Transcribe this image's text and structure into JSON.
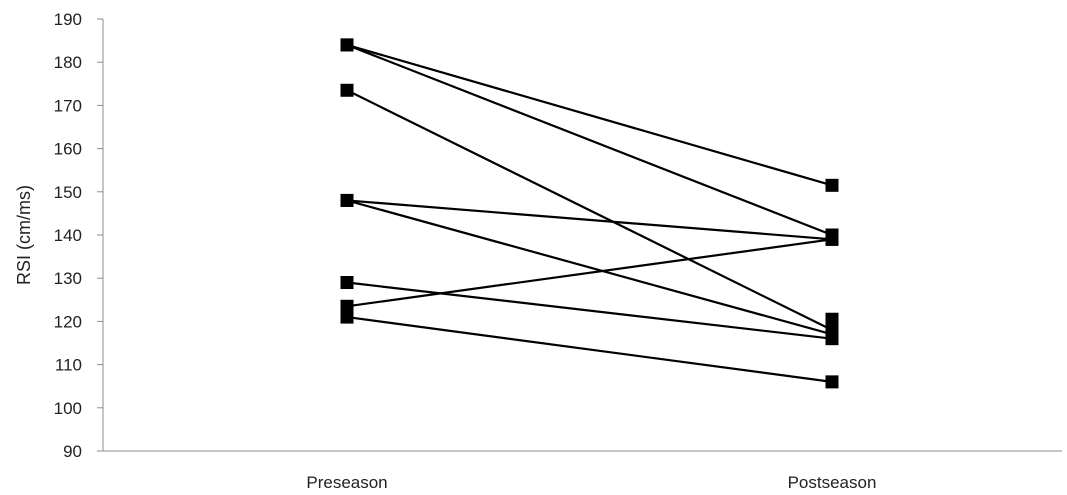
{
  "chart_data": {
    "type": "line",
    "title": "",
    "xlabel": "",
    "ylabel": "RSI (cm/ms)",
    "categories": [
      "Preseason",
      "Postseason"
    ],
    "ylim": [
      90,
      190
    ],
    "yticks": [
      90,
      100,
      110,
      120,
      130,
      140,
      150,
      160,
      170,
      180,
      190
    ],
    "grid": false,
    "legend": "none",
    "marker": "square",
    "line_color": "#000000",
    "series": [
      {
        "values": [
          184,
          151.5
        ]
      },
      {
        "values": [
          184,
          140
        ]
      },
      {
        "values": [
          173.5,
          118
        ]
      },
      {
        "values": [
          148,
          139
        ]
      },
      {
        "values": [
          148,
          117
        ]
      },
      {
        "values": [
          129,
          116
        ]
      },
      {
        "values": [
          123.5,
          139
        ]
      },
      {
        "values": [
          121,
          106
        ]
      }
    ],
    "extra_points": [
      {
        "category": "Postseason",
        "value": 120.5
      }
    ]
  }
}
